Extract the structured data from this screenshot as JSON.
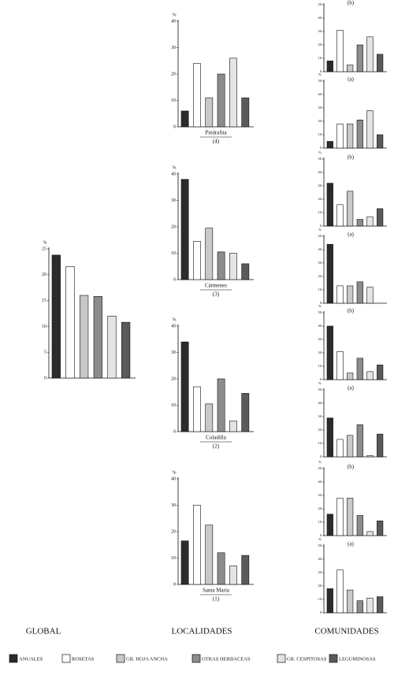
{
  "chart_data": [
    {
      "type": "bar",
      "ylabel": "%",
      "values": [
        23.8,
        21.6,
        16,
        15.8,
        12,
        10.8
      ],
      "ylim": [
        0,
        25
      ],
      "yticks": [
        0,
        5,
        10,
        15,
        20,
        25
      ]
    },
    {
      "type": "bar",
      "title": "Piedrafita",
      "subtitle": "(4)",
      "ylabel": "%",
      "values": [
        6,
        24,
        11,
        20,
        26,
        11
      ],
      "ylim": [
        0,
        40
      ],
      "yticks": [
        0,
        10,
        20,
        30,
        40
      ]
    },
    {
      "type": "bar",
      "title": "Cármenes",
      "subtitle": "(3)",
      "ylabel": "%",
      "values": [
        38,
        14.5,
        19.5,
        10.5,
        10,
        6
      ],
      "ylim": [
        0,
        40
      ],
      "yticks": [
        0,
        10,
        20,
        30,
        40
      ]
    },
    {
      "type": "bar",
      "title": "Coladilla",
      "subtitle": "(2)",
      "ylabel": "%",
      "values": [
        34,
        17,
        10.5,
        20,
        4,
        14.5
      ],
      "ylim": [
        0,
        40
      ],
      "yticks": [
        0,
        10,
        20,
        30,
        40
      ]
    },
    {
      "type": "bar",
      "title": "Santa María",
      "subtitle": "(1)",
      "ylabel": "%",
      "values": [
        16.5,
        30,
        22.5,
        12,
        7,
        11
      ],
      "ylim": [
        0,
        40
      ],
      "yticks": [
        0,
        10,
        20,
        30,
        40
      ]
    },
    {
      "type": "bar",
      "title": "(b)",
      "ylabel": "%",
      "values": [
        8,
        31,
        5,
        20,
        26,
        13
      ],
      "ylim": [
        0,
        50
      ],
      "yticks": [
        0,
        10,
        20,
        30,
        40,
        50
      ]
    },
    {
      "type": "bar",
      "title": "(a)",
      "ylabel": "%",
      "values": [
        5,
        18,
        18,
        21,
        28,
        10
      ],
      "ylim": [
        0,
        50
      ],
      "yticks": [
        0,
        10,
        20,
        30,
        40,
        50
      ]
    },
    {
      "type": "bar",
      "title": "(b)",
      "ylabel": "%",
      "values": [
        32,
        16,
        26,
        5,
        7,
        13
      ],
      "ylim": [
        0,
        50
      ],
      "yticks": [
        0,
        10,
        20,
        30,
        40,
        50
      ]
    },
    {
      "type": "bar",
      "title": "(a)",
      "ylabel": "%",
      "values": [
        44,
        13,
        13,
        16,
        12,
        0
      ],
      "ylim": [
        0,
        50
      ],
      "yticks": [
        0,
        10,
        20,
        30,
        40,
        50
      ]
    },
    {
      "type": "bar",
      "title": "(b)",
      "ylabel": "%",
      "values": [
        40,
        21,
        5,
        16,
        6,
        11
      ],
      "ylim": [
        0,
        50
      ],
      "yticks": [
        0,
        10,
        20,
        30,
        40,
        50
      ]
    },
    {
      "type": "bar",
      "title": "(a)",
      "ylabel": "%",
      "values": [
        29,
        13,
        16,
        24,
        1,
        17
      ],
      "ylim": [
        0,
        50
      ],
      "yticks": [
        0,
        10,
        20,
        30,
        40,
        50
      ]
    },
    {
      "type": "bar",
      "title": "(b)",
      "ylabel": "%",
      "values": [
        16,
        28,
        28,
        15,
        3,
        11
      ],
      "ylim": [
        0,
        50
      ],
      "yticks": [
        0,
        10,
        20,
        30,
        40,
        50
      ]
    },
    {
      "type": "bar",
      "title": "(a)",
      "ylabel": "%",
      "values": [
        18,
        32,
        17,
        9,
        11,
        12
      ],
      "ylim": [
        0,
        50
      ],
      "yticks": [
        0,
        10,
        20,
        30,
        40,
        50
      ]
    }
  ],
  "sections": [
    "GLOBAL",
    "LOCALIDADES",
    "COMUNIDADES"
  ],
  "legend": {
    "labels": [
      "ANUALES",
      "ROSETAS",
      "GR. HOJA ANCHA",
      "OTRAS HERBACEAS",
      "GR. CESPITOSAS",
      "LEGUMINOSAS"
    ],
    "colors": [
      "#2b2b2b",
      "#ffffff",
      "#c8c8c8",
      "#8c8c8c",
      "#e4e4e4",
      "#5a5a5a"
    ]
  }
}
